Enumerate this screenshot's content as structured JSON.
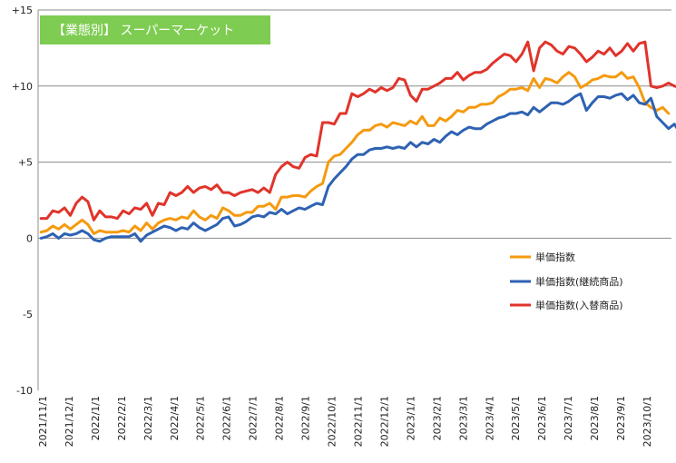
{
  "chart_data": {
    "type": "line",
    "title": "【業態別】 スーパーマーケット",
    "xlabel": "",
    "ylabel": "",
    "ylim": [
      -10,
      15
    ],
    "y_ticks": [
      15,
      10,
      5,
      0,
      -5,
      -10
    ],
    "y_tick_labels": [
      "+15",
      "+10",
      "+5",
      "0",
      "-5",
      "-10"
    ],
    "grid": "horizontal at +5, +10, +15",
    "legend_position": "right, mid",
    "x_tick_labels": [
      "2021/11/1",
      "2021/12/1",
      "2022/1/1",
      "2022/2/1",
      "2022/3/1",
      "2022/4/1",
      "2022/5/1",
      "2022/6/1",
      "2022/7/1",
      "2022/8/1",
      "2022/9/1",
      "2022/10/1",
      "2022/11/1",
      "2022/12/1",
      "2023/1/1",
      "2023/2/1",
      "2023/3/1",
      "2023/4/1",
      "2023/5/1",
      "2023/6/1",
      "2023/7/1",
      "2023/8/1",
      "2023/9/1",
      "2023/10/1"
    ],
    "series": [
      {
        "name": "単価指数",
        "color": "#f59a0f",
        "values": [
          0.4,
          0.5,
          0.8,
          0.6,
          0.9,
          0.6,
          0.9,
          1.2,
          0.9,
          0.3,
          0.5,
          0.4,
          0.4,
          0.4,
          0.5,
          0.4,
          0.8,
          0.5,
          1.0,
          0.6,
          1.0,
          1.2,
          1.3,
          1.2,
          1.4,
          1.3,
          1.8,
          1.4,
          1.2,
          1.5,
          1.3,
          2.0,
          1.8,
          1.5,
          1.5,
          1.7,
          1.7,
          2.1,
          2.1,
          2.3,
          1.9,
          2.7,
          2.7,
          2.8,
          2.8,
          2.7,
          3.1,
          3.4,
          3.6,
          5.0,
          5.4,
          5.5,
          5.9,
          6.3,
          6.8,
          7.1,
          7.1,
          7.4,
          7.5,
          7.3,
          7.6,
          7.5,
          7.4,
          7.7,
          7.5,
          8.0,
          7.4,
          7.4,
          7.9,
          7.7,
          8.0,
          8.4,
          8.3,
          8.6,
          8.6,
          8.8,
          8.8,
          8.9,
          9.3,
          9.5,
          9.8,
          9.8,
          9.9,
          9.7,
          10.5,
          9.9,
          10.5,
          10.4,
          10.2,
          10.6,
          10.9,
          10.6,
          9.9,
          10.1,
          10.4,
          10.5,
          10.7,
          10.6,
          10.6,
          10.9,
          10.5,
          10.6,
          9.9,
          8.9,
          8.6,
          8.4,
          8.6,
          8.2
        ]
      },
      {
        "name": "単価指数(継続商品)",
        "color": "#2e62b3",
        "values": [
          0.0,
          0.1,
          0.3,
          0.0,
          0.3,
          0.2,
          0.3,
          0.5,
          0.3,
          -0.1,
          -0.2,
          0.0,
          0.1,
          0.1,
          0.1,
          0.1,
          0.3,
          -0.2,
          0.2,
          0.4,
          0.6,
          0.8,
          0.7,
          0.5,
          0.7,
          0.6,
          1.0,
          0.7,
          0.5,
          0.7,
          0.9,
          1.3,
          1.4,
          0.8,
          0.9,
          1.1,
          1.4,
          1.5,
          1.4,
          1.7,
          1.6,
          1.9,
          1.6,
          1.8,
          2.0,
          1.9,
          2.1,
          2.3,
          2.2,
          3.4,
          3.9,
          4.3,
          4.7,
          5.2,
          5.5,
          5.5,
          5.8,
          5.9,
          5.9,
          6.0,
          5.9,
          6.0,
          5.9,
          6.3,
          6.0,
          6.3,
          6.2,
          6.5,
          6.3,
          6.7,
          7.0,
          6.8,
          7.1,
          7.3,
          7.2,
          7.2,
          7.5,
          7.7,
          7.9,
          8.0,
          8.2,
          8.2,
          8.3,
          8.1,
          8.6,
          8.3,
          8.6,
          8.9,
          8.9,
          8.8,
          9.0,
          9.3,
          9.5,
          8.4,
          8.9,
          9.3,
          9.3,
          9.2,
          9.4,
          9.5,
          9.1,
          9.4,
          8.9,
          8.8,
          9.2,
          8.0,
          7.6,
          7.2,
          7.5,
          6.9
        ]
      },
      {
        "name": "単価指数(入替商品)",
        "color": "#e0342b",
        "values": [
          1.3,
          1.3,
          1.8,
          1.7,
          2.0,
          1.5,
          2.3,
          2.7,
          2.4,
          1.2,
          1.8,
          1.4,
          1.4,
          1.3,
          1.8,
          1.6,
          2.0,
          1.9,
          2.3,
          1.5,
          2.3,
          2.2,
          3.0,
          2.8,
          3.0,
          3.4,
          3.0,
          3.3,
          3.4,
          3.2,
          3.5,
          3.0,
          3.0,
          2.8,
          3.0,
          3.1,
          3.2,
          3.0,
          3.3,
          3.0,
          4.2,
          4.7,
          5.0,
          4.7,
          4.6,
          5.3,
          5.5,
          5.4,
          7.6,
          7.6,
          7.5,
          8.2,
          8.2,
          9.5,
          9.3,
          9.5,
          9.8,
          9.6,
          9.9,
          9.7,
          9.9,
          10.5,
          10.4,
          9.4,
          9.0,
          9.8,
          9.8,
          10.0,
          10.2,
          10.5,
          10.5,
          10.9,
          10.4,
          10.7,
          10.9,
          10.9,
          11.1,
          11.5,
          11.8,
          12.1,
          12.0,
          11.6,
          12.1,
          12.9,
          11.0,
          12.5,
          12.9,
          12.7,
          12.3,
          12.1,
          12.6,
          12.5,
          12.1,
          11.6,
          11.9,
          12.3,
          12.1,
          12.5,
          12.0,
          12.3,
          12.8,
          12.3,
          12.8,
          12.9,
          10.0,
          9.9,
          10.0,
          10.2,
          10.0,
          9.9
        ]
      }
    ]
  }
}
